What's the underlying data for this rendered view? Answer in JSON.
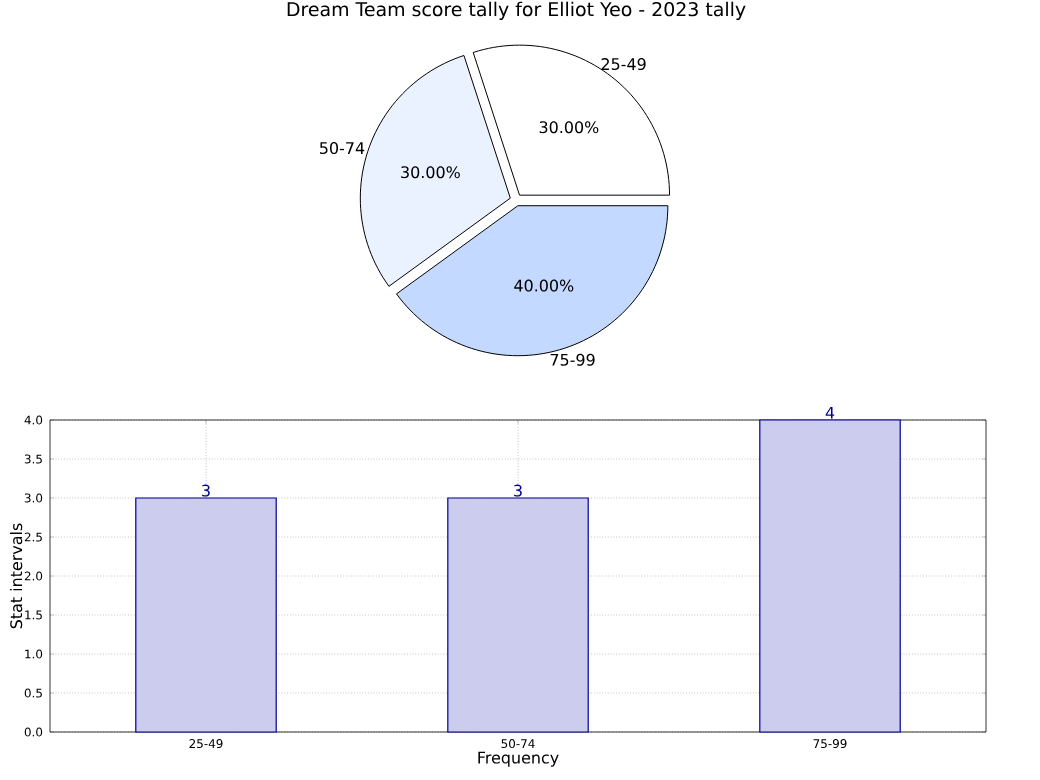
{
  "chart_data": [
    {
      "type": "pie",
      "title": "Dream Team score tally for Elliot Yeo - 2023 tally",
      "categories": [
        "25-49",
        "50-74",
        "75-99"
      ],
      "values": [
        30,
        30,
        40
      ],
      "value_labels": [
        "30.00%",
        "30.00%",
        "40.00%"
      ],
      "colors": [
        "#ffffff",
        "#eaf1ff",
        "#c4d9ff"
      ]
    },
    {
      "type": "bar",
      "categories": [
        "25-49",
        "50-74",
        "75-99"
      ],
      "values": [
        3,
        3,
        4
      ],
      "color": "#ccccee",
      "xlabel": "Frequency",
      "ylabel": "Stat intervals",
      "ylim": [
        0,
        4
      ],
      "yticks": [
        {
          "value": 0,
          "label": "0.0"
        },
        {
          "value": 0.5,
          "label": "0.5"
        },
        {
          "value": 1,
          "label": "1.0"
        },
        {
          "value": 1.5,
          "label": "1.5"
        },
        {
          "value": 2,
          "label": "2.0"
        },
        {
          "value": 2.5,
          "label": "2.5"
        },
        {
          "value": 3,
          "label": "3.0"
        },
        {
          "value": 3.5,
          "label": "3.5"
        },
        {
          "value": 4,
          "label": "4.0"
        }
      ],
      "grid": true,
      "data_labels": true
    }
  ]
}
